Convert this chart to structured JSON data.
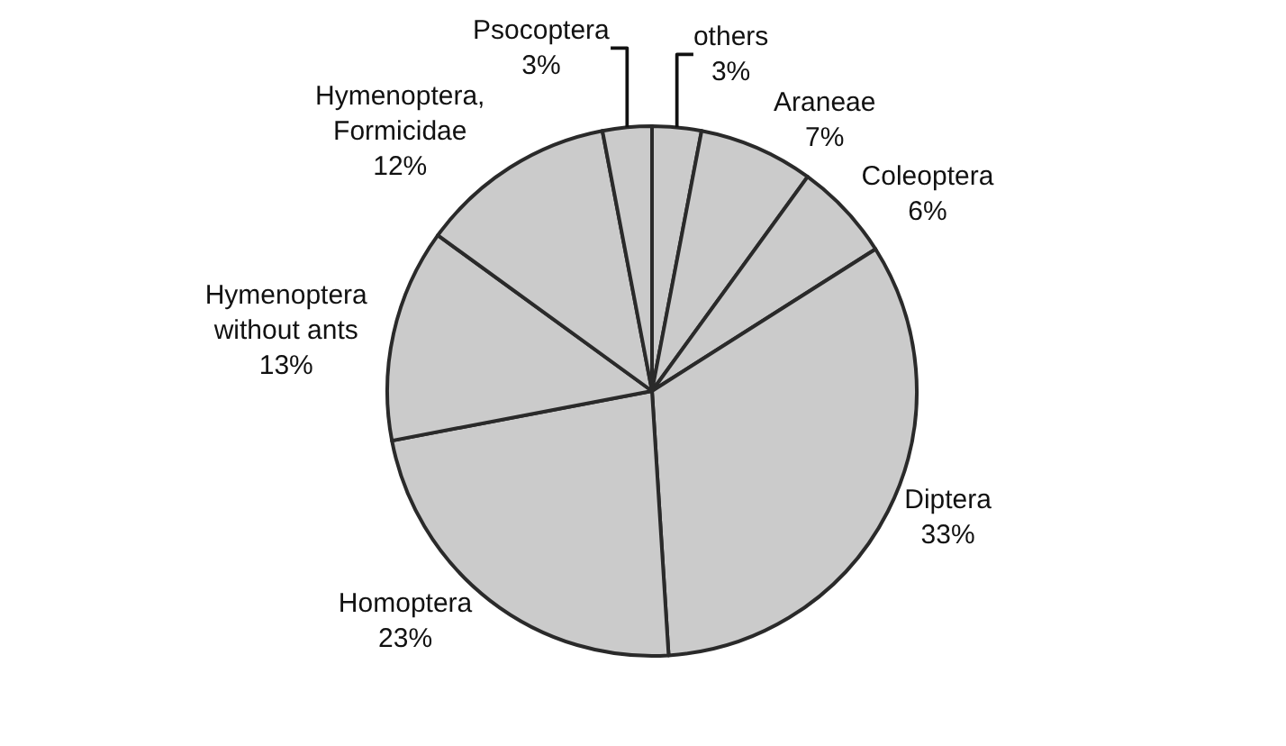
{
  "chart_data": {
    "type": "pie",
    "categories": [
      "others",
      "Araneae",
      "Coleoptera",
      "Diptera",
      "Homoptera",
      "Hymenoptera without ants",
      "Hymenoptera, Formicidae",
      "Psocoptera"
    ],
    "values": [
      3,
      7,
      6,
      33,
      23,
      13,
      12,
      3
    ],
    "value_labels": [
      "3%",
      "7%",
      "6%",
      "33%",
      "23%",
      "13%",
      "12%",
      "3%"
    ],
    "colors": [
      "#cbcbcb",
      "#cbcbcb",
      "#cbcbcb",
      "#cbcbcb",
      "#cbcbcb",
      "#cbcbcb",
      "#cbcbcb",
      "#cbcbcb"
    ],
    "legend": false
  }
}
